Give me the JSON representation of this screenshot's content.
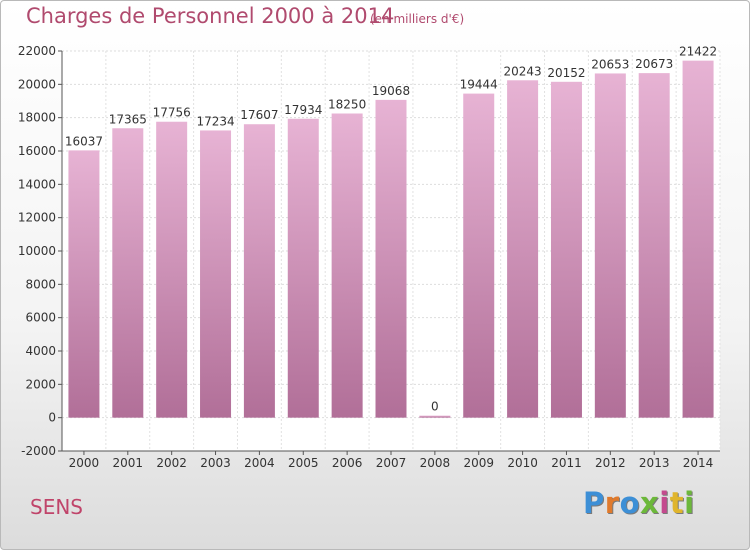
{
  "header": {
    "title": "Charges de Personnel 2000 à 2014",
    "subtitle": "(en milliers d'€)"
  },
  "footer": {
    "city": "SENS",
    "brand": "Proxiti",
    "brand_colors": [
      "#3d8fd6",
      "#e07a2c",
      "#3d8fd6",
      "#6cb83a",
      "#c44a8e",
      "#e0b52c",
      "#6cb83a"
    ]
  },
  "colors": {
    "bar_light": "#e7b3d4",
    "bar_dark": "#b16f98",
    "accent": "#b04a6e"
  },
  "chart_data": {
    "type": "bar",
    "title": "Charges de Personnel 2000 à 2014",
    "subtitle": "(en milliers d'€)",
    "categories": [
      "2000",
      "2001",
      "2002",
      "2003",
      "2004",
      "2005",
      "2006",
      "2007",
      "2008",
      "2009",
      "2010",
      "2011",
      "2012",
      "2013",
      "2014"
    ],
    "values": [
      16037,
      17365,
      17756,
      17234,
      17607,
      17934,
      18250,
      19068,
      0,
      19444,
      20243,
      20152,
      20653,
      20673,
      21422
    ],
    "ylim": [
      -2000,
      22000
    ],
    "yticks": [
      -2000,
      0,
      2000,
      4000,
      6000,
      8000,
      10000,
      12000,
      14000,
      16000,
      18000,
      20000,
      22000
    ],
    "grid": true,
    "legend": "none"
  }
}
